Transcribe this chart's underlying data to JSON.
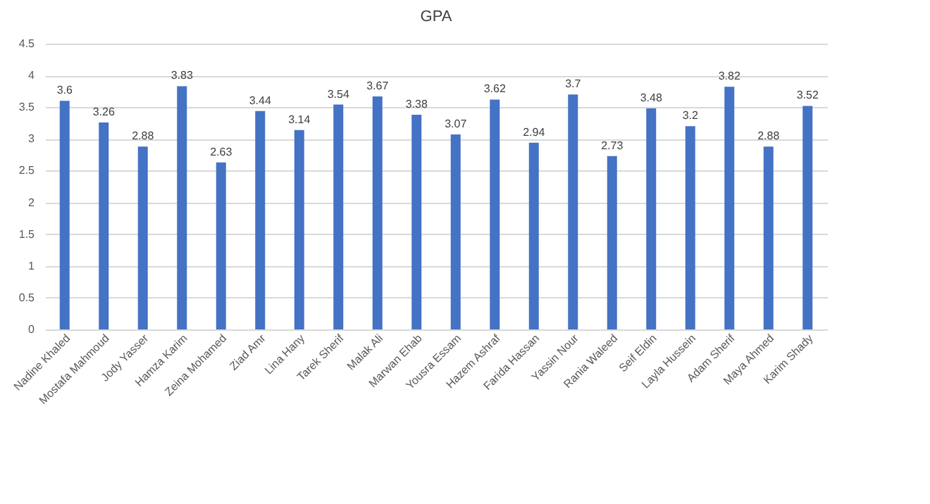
{
  "chart_data": {
    "type": "bar",
    "title": "GPA",
    "categories": [
      "Nadine Khaled",
      "Mostafa Mahmoud",
      "Jody Yasser",
      "Hamza Karim",
      "Zeina Mohamed",
      "Ziad Amr",
      "Lina Hany",
      "Tarek Sherif",
      "Malak Ali",
      "Marwan Ehab",
      "Yousra Essam",
      "Hazem Ashraf",
      "Farida Hassan",
      "Yassin Nour",
      "Rania Waleed",
      "Seif Eldin",
      "Layla Hussein",
      "Adam Sherif",
      "Maya Ahmed",
      "Karim Shady"
    ],
    "values": [
      3.6,
      3.26,
      2.88,
      3.83,
      2.63,
      3.44,
      3.14,
      3.54,
      3.67,
      3.38,
      3.07,
      3.62,
      2.94,
      3.7,
      2.73,
      3.48,
      3.2,
      3.82,
      2.88,
      3.52
    ],
    "color": "#4472c4",
    "ylim": [
      0,
      4.5
    ],
    "yticks": [
      0,
      0.5,
      1,
      1.5,
      2,
      2.5,
      3,
      3.5,
      4,
      4.5
    ],
    "grid": "y",
    "data_labels": true
  }
}
